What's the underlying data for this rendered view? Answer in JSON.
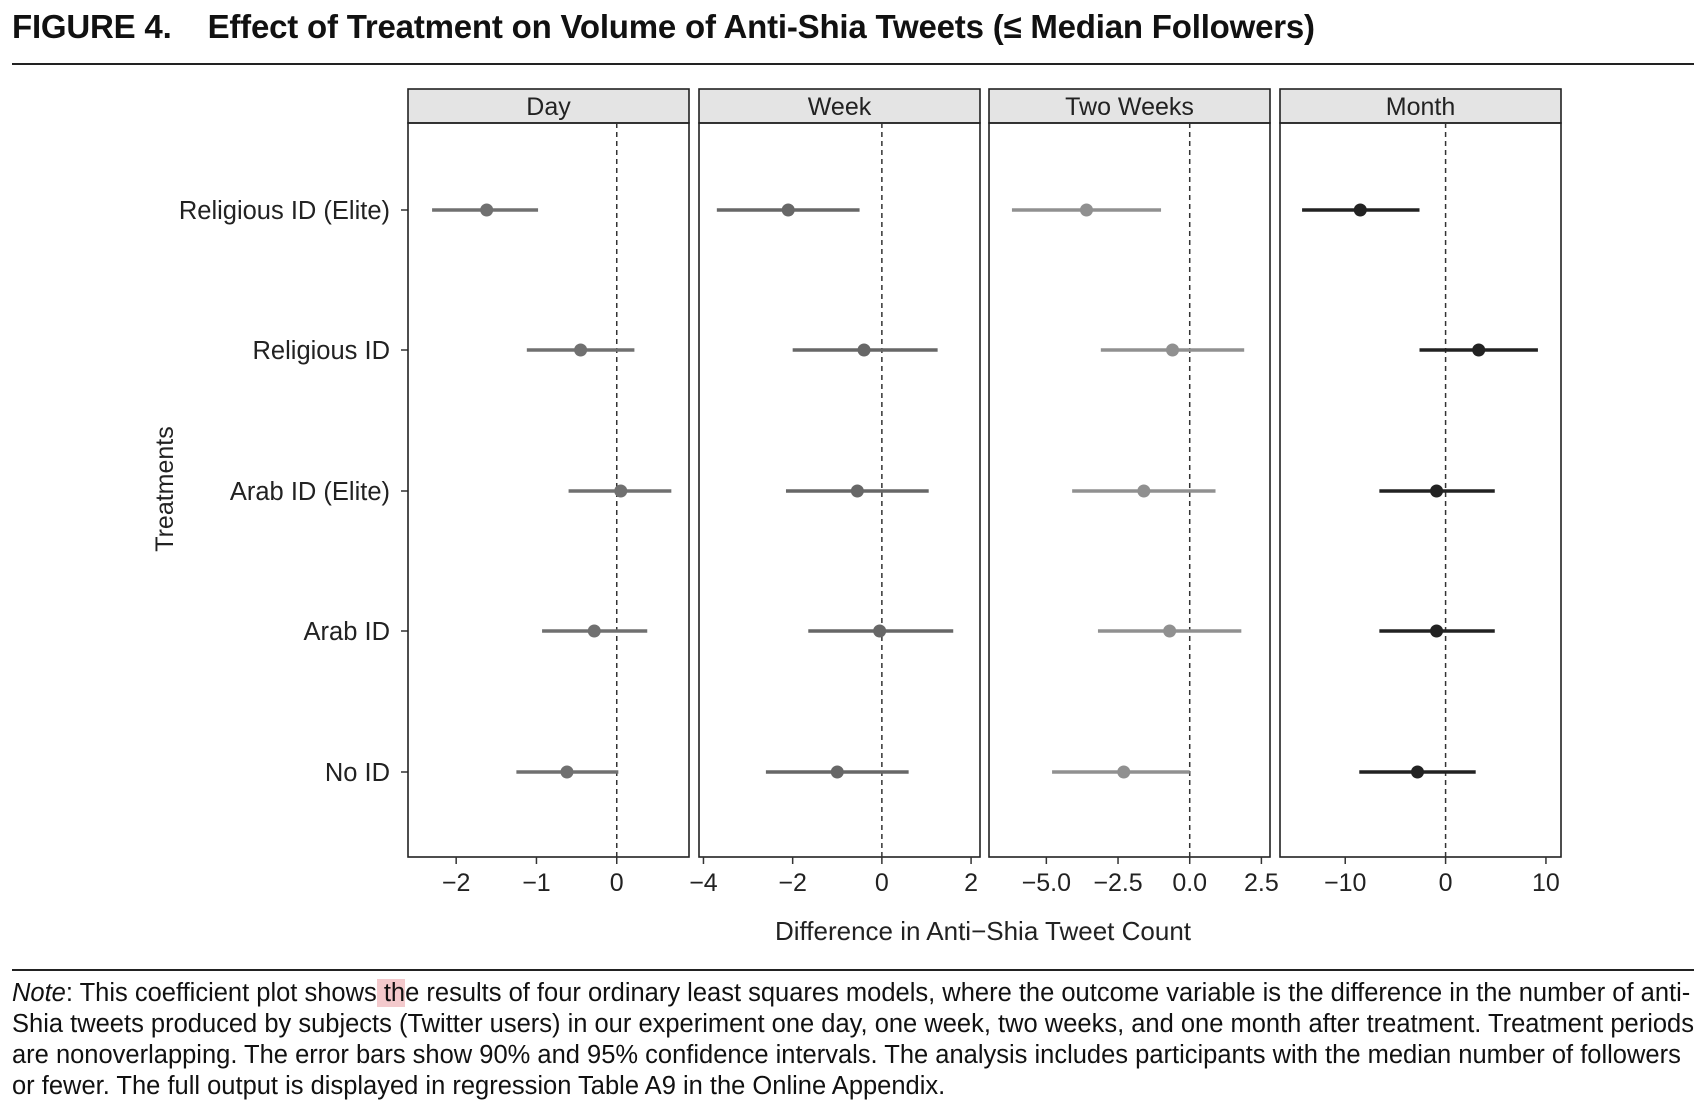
{
  "figure": {
    "number": "FIGURE 4.",
    "title": "Effect of Treatment on Volume of Anti-Shia Tweets (≤ Median Followers)"
  },
  "note": {
    "label": "Note",
    "text_before_highlight": ": This coefficient plot shows",
    "highlight": " th",
    "text_after_highlight": "e results of four ordinary least squares models, where the outcome variable is the difference in the number of anti-Shia tweets produced by subjects (Twitter users) in our experiment one day, one week, two weeks, and one month after treatment. Treatment periods are nonoverlapping. The error bars show 90% and 95% confidence intervals. The analysis includes participants with the median number of followers or fewer. The full output is displayed in regression Table A9 in the Online Appendix."
  },
  "chart_data": {
    "type": "coefficient-plot",
    "xlabel": "Difference in Anti−Shia Tweet Count",
    "ylabel": "Treatments",
    "categories": [
      "Religious ID (Elite)",
      "Religious ID",
      "Arab ID (Elite)",
      "Arab ID",
      "No ID"
    ],
    "reference_line": 0,
    "panels": [
      {
        "title": "Day",
        "color": "#707070",
        "xlim": [
          -2.6,
          0.9
        ],
        "ticks": [
          -2,
          -1,
          0
        ],
        "tick_labels": [
          "−2",
          "−1",
          "0"
        ],
        "estimates": [
          -1.62,
          -0.45,
          0.05,
          -0.28,
          -0.62
        ],
        "ci_low": [
          -2.3,
          -1.12,
          -0.6,
          -0.93,
          -1.25
        ],
        "ci_high": [
          -0.98,
          0.22,
          0.68,
          0.38,
          0.02
        ]
      },
      {
        "title": "Week",
        "color": "#676767",
        "xlim": [
          -4.1,
          2.2
        ],
        "ticks": [
          -4,
          -2,
          0,
          2
        ],
        "tick_labels": [
          "−4",
          "−2",
          "0",
          "2"
        ],
        "estimates": [
          -2.1,
          -0.4,
          -0.55,
          -0.05,
          -1.0
        ],
        "ci_low": [
          -3.7,
          -2.0,
          -2.15,
          -1.65,
          -2.6
        ],
        "ci_high": [
          -0.5,
          1.25,
          1.05,
          1.6,
          0.6
        ]
      },
      {
        "title": "Two Weeks",
        "color": "#909090",
        "xlim": [
          -7.0,
          2.8
        ],
        "ticks": [
          -5.0,
          -2.5,
          0.0,
          2.5
        ],
        "tick_labels": [
          "−5.0",
          "−2.5",
          "0.0",
          "2.5"
        ],
        "estimates": [
          -3.6,
          -0.6,
          -1.6,
          -0.7,
          -2.3
        ],
        "ci_low": [
          -6.2,
          -3.1,
          -4.1,
          -3.2,
          -4.8
        ],
        "ci_high": [
          -1.0,
          1.9,
          0.9,
          1.8,
          0.0
        ]
      },
      {
        "title": "Month",
        "color": "#222222",
        "xlim": [
          -16.5,
          11.5
        ],
        "ticks": [
          -10,
          0,
          10
        ],
        "tick_labels": [
          "−10",
          "0",
          "10"
        ],
        "estimates": [
          -8.5,
          3.3,
          -0.9,
          -0.9,
          -2.8
        ],
        "ci_low": [
          -14.3,
          -2.6,
          -6.6,
          -6.6,
          -8.6
        ],
        "ci_high": [
          -2.6,
          9.2,
          4.9,
          4.9,
          3.0
        ]
      }
    ]
  }
}
